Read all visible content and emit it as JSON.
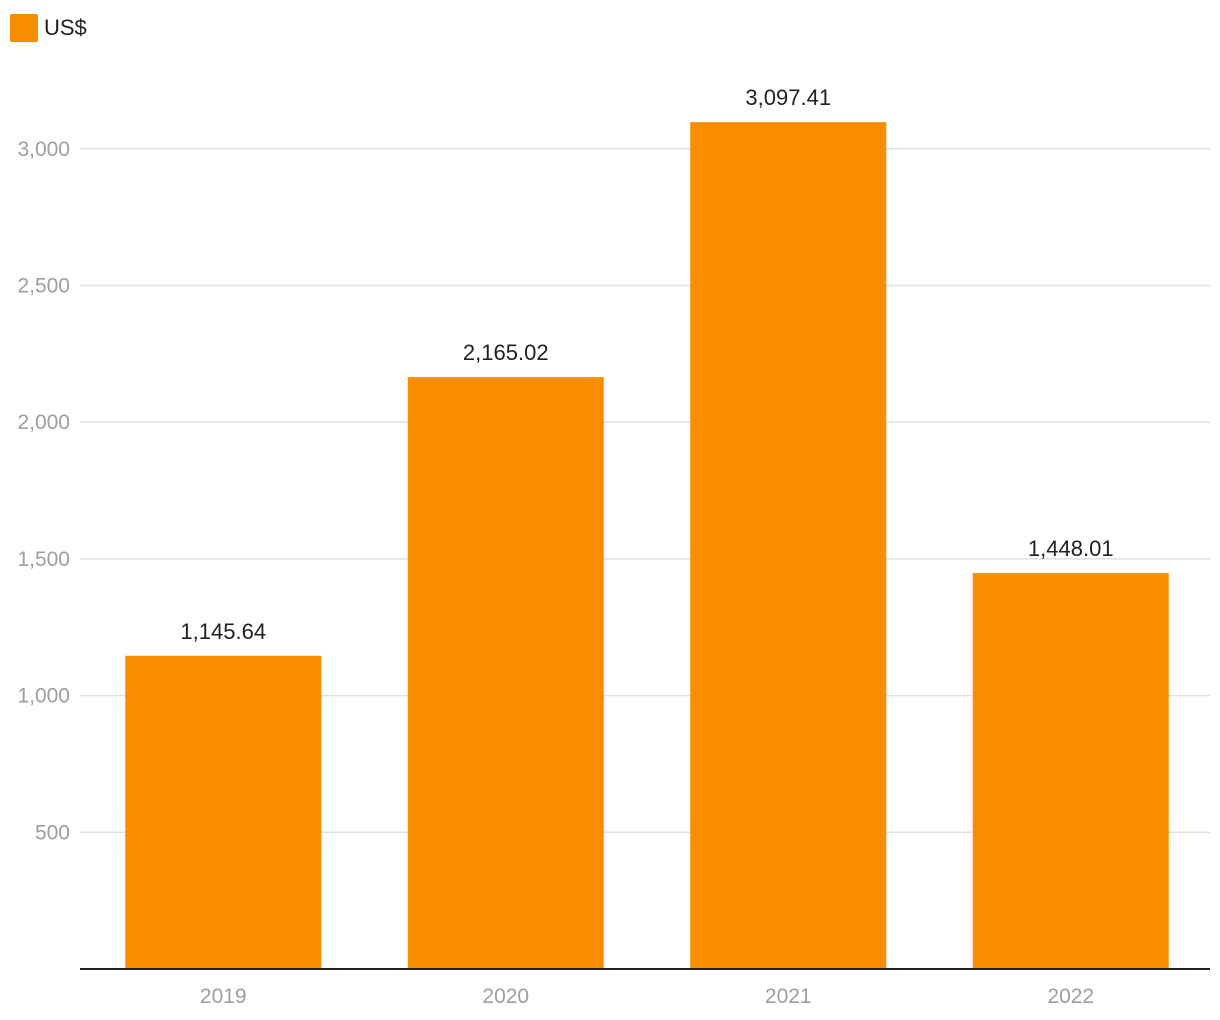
{
  "chart_data": {
    "type": "bar",
    "categories": [
      "2019",
      "2020",
      "2021",
      "2022"
    ],
    "series": [
      {
        "name": "US$",
        "values": [
          1145.64,
          2165.02,
          3097.41,
          1448.01
        ],
        "value_labels": [
          "1,145.64",
          "2,165.02",
          "3,097.41",
          "1,448.01"
        ],
        "color": "#f98d00"
      }
    ],
    "title": "",
    "xlabel": "",
    "ylabel": "",
    "ylim": [
      0,
      3200
    ],
    "yticks": [
      500,
      1000,
      1500,
      2000,
      2500,
      3000
    ],
    "ytick_labels": [
      "500",
      "1,000",
      "1,500",
      "2,000",
      "2,500",
      "3,000"
    ],
    "grid": true,
    "legend_position": "top-left"
  },
  "colors": {
    "bar": "#f98d00",
    "grid": "#e0e0e0",
    "axis": "#222222"
  }
}
